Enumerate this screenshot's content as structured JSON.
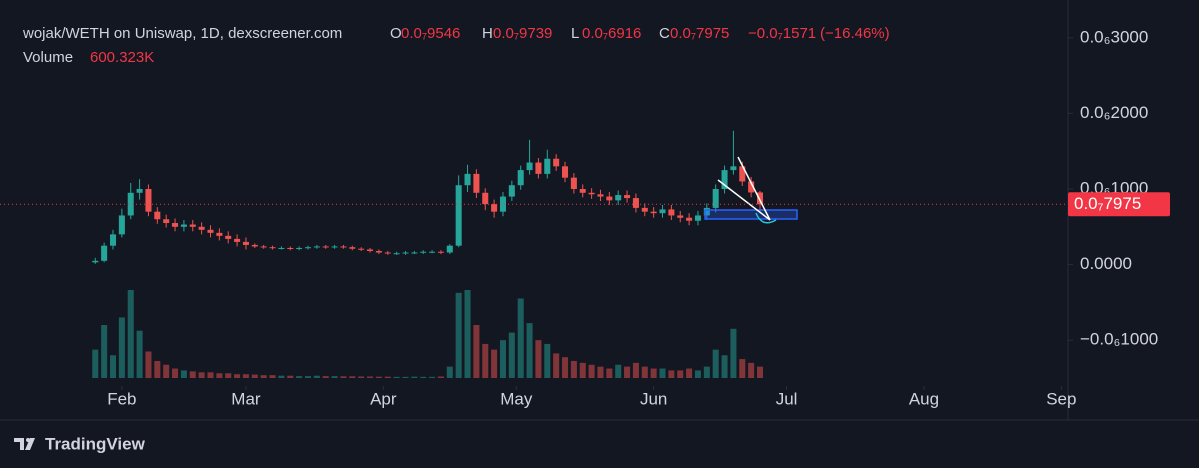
{
  "chart_data": {
    "type": "candlestick",
    "title": "wojak/WETH on Uniswap, 1D, dexscreener.com",
    "ohlc": [
      {
        "label": "O",
        "value": 9.546e-08,
        "value_label": "0.0₇9546"
      },
      {
        "label": "H",
        "value": 9.739e-08,
        "value_label": "0.0₇9739"
      },
      {
        "label": "L",
        "value": 6.916e-08,
        "value_label": "0.0₇6916"
      },
      {
        "label": "C",
        "value": 7.975e-08,
        "value_label": "0.0₇7975"
      }
    ],
    "change": {
      "value": -1.571e-08,
      "value_label": "−0.0₇1571",
      "percent": -16.46,
      "percent_label": "(−16.46%)"
    },
    "volume_legend": {
      "label": "Volume",
      "value": 600323,
      "value_label": "600.323K"
    },
    "last_price": {
      "value": 7.975e-08,
      "label": "0.0₇7975",
      "color": "#f23645"
    },
    "colors": {
      "up": "#26a69a",
      "down": "#ef5350"
    },
    "xlim": [
      -27.5,
      213.5
    ],
    "xticks": [
      {
        "value": 0,
        "label": "Feb"
      },
      {
        "value": 28,
        "label": "Mar"
      },
      {
        "value": 59,
        "label": "Apr"
      },
      {
        "value": 89,
        "label": "May"
      },
      {
        "value": 120,
        "label": "Jun"
      },
      {
        "value": 150,
        "label": "Jul"
      },
      {
        "value": 181,
        "label": "Aug"
      },
      {
        "value": 212,
        "label": "Sep"
      }
    ],
    "ylim": [
      -1.5e-07,
      3.5e-07
    ],
    "yticks": [
      {
        "value": 3e-07,
        "label": "0.0₆3000"
      },
      {
        "value": 2e-07,
        "label": "0.0₆2000"
      },
      {
        "value": 1e-07,
        "label": "0.0₆1000"
      },
      {
        "value": 0,
        "label": "0.0000"
      },
      {
        "value": -1e-07,
        "label": "−0.0₆1000"
      }
    ],
    "x": [
      -6,
      -4,
      -2,
      0,
      2,
      4,
      6,
      8,
      10,
      12,
      14,
      16,
      18,
      20,
      22,
      24,
      26,
      28,
      30,
      32,
      34,
      36,
      38,
      40,
      42,
      44,
      46,
      48,
      50,
      52,
      54,
      56,
      58,
      60,
      62,
      64,
      66,
      68,
      70,
      72,
      74,
      76,
      78,
      80,
      82,
      84,
      86,
      88,
      90,
      92,
      94,
      96,
      98,
      100,
      102,
      104,
      106,
      108,
      110,
      112,
      114,
      116,
      118,
      120,
      122,
      124,
      126,
      128,
      130,
      132,
      134,
      136,
      138,
      140,
      142,
      144
    ],
    "open": [
      3e-09,
      5e-09,
      2.5e-08,
      4e-08,
      6.5e-08,
      9.5e-08,
      1e-07,
      7e-08,
      6e-08,
      5.5e-08,
      5e-08,
      5.3e-08,
      5e-08,
      4.6e-08,
      4.2e-08,
      3.8e-08,
      3.4e-08,
      3e-08,
      2.6e-08,
      2.4e-08,
      2.3e-08,
      2.2e-08,
      2.2e-08,
      2.1e-08,
      2.2e-08,
      2.3e-08,
      2.4e-08,
      2.3e-08,
      2.4e-08,
      2.3e-08,
      2.1e-08,
      2e-08,
      1.8e-08,
      1.6e-08,
      1.5e-08,
      1.5e-08,
      1.6e-08,
      1.6e-08,
      1.7e-08,
      1.7e-08,
      1.6e-08,
      2.5e-08,
      1.05e-07,
      1.2e-07,
      9.5e-08,
      8e-08,
      7e-08,
      9e-08,
      1.05e-07,
      1.25e-07,
      1.35e-07,
      1.2e-07,
      1.4e-07,
      1.3e-07,
      1.15e-07,
      1e-07,
      9.5e-08,
      9.3e-08,
      9e-08,
      8.5e-08,
      9.2e-08,
      8.8e-08,
      7.5e-08,
      7e-08,
      6.8e-08,
      7.3e-08,
      6.5e-08,
      6.2e-08,
      5.8e-08,
      6.5e-08,
      7.5e-08,
      1e-07,
      1.25e-07,
      1.3e-07,
      1.1e-07,
      9.546e-08
    ],
    "high": [
      9e-09,
      2.9e-08,
      4.6e-08,
      7.4e-08,
      1.08e-07,
      1.13e-07,
      1.06e-07,
      7.6e-08,
      6.6e-08,
      6.1e-08,
      5.9e-08,
      5.9e-08,
      5.6e-08,
      5.2e-08,
      4.8e-08,
      4.4e-08,
      4e-08,
      3.6e-08,
      2.8e-08,
      2.6e-08,
      2.5e-08,
      2.4e-08,
      2.4e-08,
      2.4e-08,
      2.5e-08,
      2.6e-08,
      2.6e-08,
      2.6e-08,
      2.6e-08,
      2.5e-08,
      2.3e-08,
      2.2e-08,
      2e-08,
      1.8e-08,
      1.7e-08,
      1.8e-08,
      1.8e-08,
      1.9e-08,
      1.9e-08,
      1.9e-08,
      2.7e-08,
      1.18e-07,
      1.32e-07,
      1.26e-07,
      1.01e-07,
      8.6e-08,
      9.6e-08,
      1.11e-07,
      1.31e-07,
      1.65e-07,
      1.41e-07,
      1.52e-07,
      1.46e-07,
      1.36e-07,
      1.21e-07,
      1.06e-07,
      1.01e-07,
      9.9e-08,
      9.6e-08,
      9.8e-08,
      9.8e-08,
      9.4e-08,
      8.1e-08,
      7.6e-08,
      7.9e-08,
      7.9e-08,
      7.1e-08,
      6.8e-08,
      7.1e-08,
      8.1e-08,
      1.06e-07,
      1.31e-07,
      1.77e-07,
      1.36e-07,
      1.16e-07,
      9.739e-08
    ],
    "low": [
      1e-09,
      3e-09,
      2e-08,
      3.6e-08,
      6e-08,
      8.6e-08,
      6.4e-08,
      5.4e-08,
      4.9e-08,
      4.4e-08,
      4.4e-08,
      4.4e-08,
      4e-08,
      3.6e-08,
      3.2e-08,
      2.8e-08,
      2.4e-08,
      2e-08,
      2.2e-08,
      2.1e-08,
      2e-08,
      2e-08,
      1.9e-08,
      1.9e-08,
      2e-08,
      2.1e-08,
      2.1e-08,
      2.1e-08,
      2.1e-08,
      1.9e-08,
      1.8e-08,
      1.6e-08,
      1.4e-08,
      1.3e-08,
      1.3e-08,
      1.3e-08,
      1.4e-08,
      1.4e-08,
      1.5e-08,
      1.4e-08,
      1.4e-08,
      2.3e-08,
      9.6e-08,
      8.8e-08,
      7.2e-08,
      6.2e-08,
      6.4e-08,
      8.4e-08,
      9.9e-08,
      1.19e-07,
      1.14e-07,
      1.14e-07,
      1.24e-07,
      1.09e-07,
      9.4e-08,
      8.9e-08,
      8.7e-08,
      8.4e-08,
      7.9e-08,
      7.9e-08,
      8.2e-08,
      6.9e-08,
      6.4e-08,
      6.2e-08,
      6.2e-08,
      5.9e-08,
      5.6e-08,
      5.2e-08,
      5.2e-08,
      5.9e-08,
      6.9e-08,
      9.4e-08,
      1.19e-07,
      1.04e-07,
      8.9e-08,
      6.916e-08
    ],
    "close": [
      5e-09,
      2.5e-08,
      4e-08,
      6.5e-08,
      9.5e-08,
      1e-07,
      7e-08,
      6e-08,
      5.5e-08,
      5e-08,
      5.3e-08,
      5e-08,
      4.6e-08,
      4.2e-08,
      3.8e-08,
      3.4e-08,
      3e-08,
      2.6e-08,
      2.4e-08,
      2.3e-08,
      2.2e-08,
      2.2e-08,
      2.1e-08,
      2.2e-08,
      2.3e-08,
      2.4e-08,
      2.3e-08,
      2.4e-08,
      2.3e-08,
      2.1e-08,
      2e-08,
      1.8e-08,
      1.6e-08,
      1.5e-08,
      1.5e-08,
      1.6e-08,
      1.6e-08,
      1.7e-08,
      1.7e-08,
      1.6e-08,
      2.5e-08,
      1.05e-07,
      1.2e-07,
      9.5e-08,
      8e-08,
      7e-08,
      9e-08,
      1.05e-07,
      1.25e-07,
      1.35e-07,
      1.2e-07,
      1.4e-07,
      1.3e-07,
      1.15e-07,
      1e-07,
      9.5e-08,
      9.3e-08,
      9e-08,
      8.5e-08,
      9.2e-08,
      8.8e-08,
      7.5e-08,
      7e-08,
      6.8e-08,
      7.3e-08,
      6.5e-08,
      6.2e-08,
      5.8e-08,
      6.5e-08,
      7.5e-08,
      1e-07,
      1.25e-07,
      1.3e-07,
      1.1e-07,
      9.546e-08,
      7.975e-08
    ],
    "volume": [
      1500000,
      2800000,
      1200000,
      3200000,
      4650000,
      2500000,
      1400000,
      900000,
      700000,
      500000,
      400000,
      350000,
      300000,
      300000,
      250000,
      250000,
      200000,
      200000,
      180000,
      150000,
      150000,
      120000,
      120000,
      100000,
      100000,
      120000,
      100000,
      100000,
      90000,
      90000,
      80000,
      80000,
      70000,
      70000,
      60000,
      60000,
      70000,
      60000,
      60000,
      80000,
      600000,
      4500000,
      4650000,
      2800000,
      1800000,
      1500000,
      2000000,
      2400000,
      4200000,
      2900000,
      2000000,
      1800000,
      1300000,
      1100000,
      900000,
      800000,
      700000,
      600000,
      500000,
      700000,
      600000,
      800000,
      600000,
      500000,
      500000,
      400000,
      400000,
      500000,
      400000,
      600000,
      1500000,
      1200000,
      2600000,
      1000000,
      800000,
      600323
    ]
  },
  "footer": {
    "brand": "TradingView"
  }
}
